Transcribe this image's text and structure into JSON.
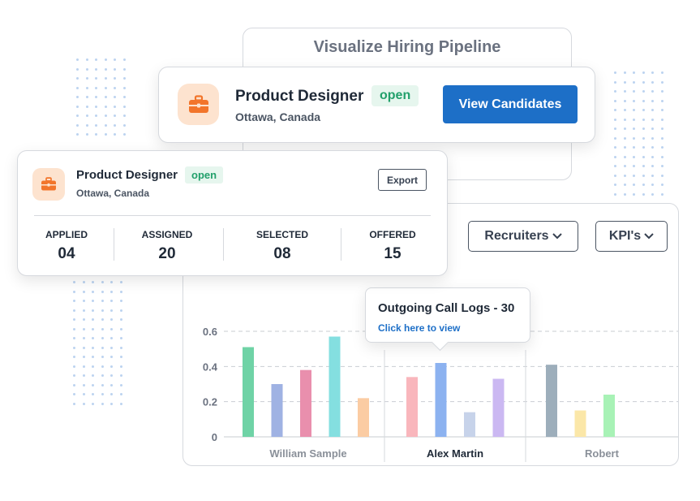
{
  "back_card": {
    "title": "Visualize Hiring Pipeline"
  },
  "job_card": {
    "title": "Product Designer",
    "status": "open",
    "location": "Ottawa, Canada",
    "cta": "View Candidates"
  },
  "summary_card": {
    "title": "Product Designer",
    "status": "open",
    "location": "Ottawa, Canada",
    "export_label": "Export",
    "stats": [
      {
        "label": "APPLIED",
        "value": "04"
      },
      {
        "label": "ASSIGNED",
        "value": "20"
      },
      {
        "label": "SELECTED",
        "value": "08"
      },
      {
        "label": "OFFERED",
        "value": "15"
      }
    ]
  },
  "filters": {
    "recruiters_label": "Recruiters",
    "kpi_label": "KPI's"
  },
  "tooltip": {
    "title": "Outgoing Call Logs - 30",
    "link": "Click here to view"
  },
  "colors": {
    "accent": "#1d6fc7",
    "open_badge_text": "#22a06b",
    "open_badge_bg": "#e6f6ee",
    "icon_orange": "#f2752b",
    "icon_bg": "#fde3cf"
  },
  "chart_data": {
    "type": "bar",
    "ylim": [
      0,
      0.65
    ],
    "yticks": [
      {
        "value": 0,
        "label": "0"
      },
      {
        "value": 0.2,
        "label": "0.2"
      },
      {
        "value": 0.4,
        "label": "0.4"
      },
      {
        "value": 0.6,
        "label": "0.6"
      }
    ],
    "grid": true,
    "groups": [
      {
        "name": "William Sample",
        "highlight": false,
        "bars": [
          {
            "value": 0.51,
            "color": "#6fd3a6"
          },
          {
            "value": 0.3,
            "color": "#9fb2e3"
          },
          {
            "value": 0.38,
            "color": "#e98fad"
          },
          {
            "value": 0.57,
            "color": "#84dfe0"
          },
          {
            "value": 0.22,
            "color": "#fbcca3"
          }
        ]
      },
      {
        "name": "Alex Martin",
        "highlight": true,
        "bars": [
          {
            "value": 0.34,
            "color": "#f9b6bc"
          },
          {
            "value": 0.42,
            "color": "#8cb2f0"
          },
          {
            "value": 0.14,
            "color": "#c7d3ea"
          },
          {
            "value": 0.33,
            "color": "#cbb8f2"
          }
        ]
      },
      {
        "name": "Robert",
        "highlight": false,
        "bars": [
          {
            "value": 0.41,
            "color": "#9daebb"
          },
          {
            "value": 0.15,
            "color": "#fbe7a8"
          },
          {
            "value": 0.24,
            "color": "#a8f2b6"
          }
        ]
      }
    ]
  }
}
